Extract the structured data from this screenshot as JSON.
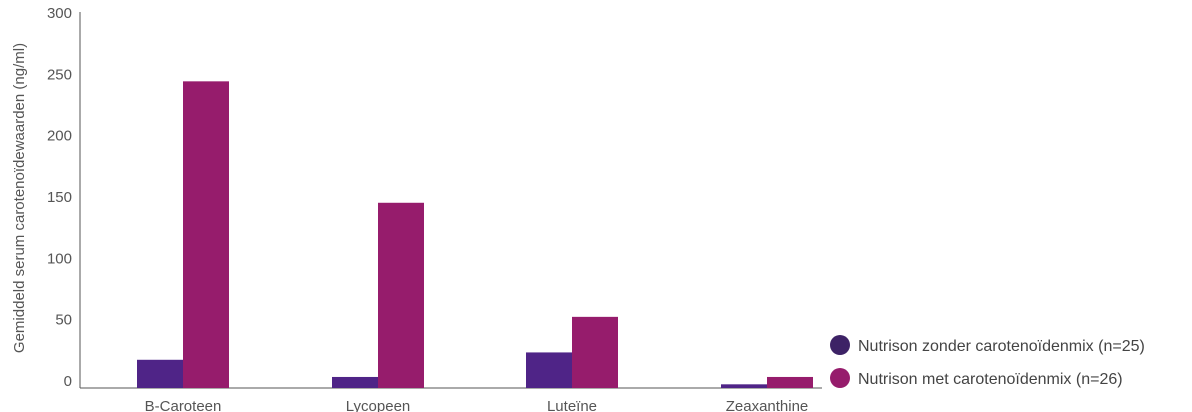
{
  "chart_data": {
    "type": "bar",
    "title": "",
    "xlabel": "",
    "ylabel": "Gemiddeld serum carotenoïdewaarden (ng/ml)",
    "categories": [
      "B-Caroteen",
      "Lycopeen",
      "Luteïne",
      "Zeaxanthine"
    ],
    "series": [
      {
        "name": "Nutrison zonder carotenoïdenmix (n=25)",
        "values": [
          23,
          9,
          29,
          3
        ],
        "color": "#4f2487"
      },
      {
        "name": "Nutrison met carotenoïdenmix (n=26)",
        "values": [
          250,
          151,
          58,
          9
        ],
        "color": "#961c6c"
      }
    ],
    "ylim": [
      0,
      300
    ],
    "yticks": [
      0,
      50,
      100,
      150,
      200,
      250,
      300
    ],
    "grid": false,
    "legend_position": "bottom-right",
    "legend_marker_color": "#3d2266"
  }
}
